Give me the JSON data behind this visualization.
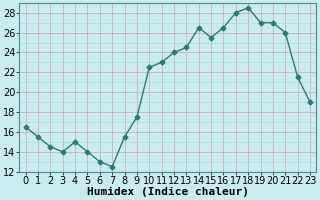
{
  "x": [
    0,
    1,
    2,
    3,
    4,
    5,
    6,
    7,
    8,
    9,
    10,
    11,
    12,
    13,
    14,
    15,
    16,
    17,
    18,
    19,
    20,
    21,
    22,
    23
  ],
  "y": [
    16.5,
    15.5,
    14.5,
    14.0,
    15.0,
    14.0,
    13.0,
    12.5,
    15.5,
    17.5,
    22.5,
    23.0,
    24.0,
    24.5,
    26.5,
    25.5,
    26.5,
    28.0,
    28.5,
    27.0,
    27.0,
    26.0,
    21.5,
    19.0
  ],
  "line_color": "#2e7b6e",
  "marker": "D",
  "markersize": 2.5,
  "bg_color": "#cbecec",
  "grid_color_minor": "#aed8d8",
  "grid_color_major": "#c8a8a8",
  "xlabel": "Humidex (Indice chaleur)",
  "xlim": [
    -0.5,
    23.5
  ],
  "ylim": [
    12,
    29
  ],
  "yticks": [
    12,
    14,
    16,
    18,
    20,
    22,
    24,
    26,
    28
  ],
  "xticks": [
    0,
    1,
    2,
    3,
    4,
    5,
    6,
    7,
    8,
    9,
    10,
    11,
    12,
    13,
    14,
    15,
    16,
    17,
    18,
    19,
    20,
    21,
    22,
    23
  ],
  "xlabel_fontsize": 8,
  "tick_fontsize": 7,
  "linewidth": 1.0
}
